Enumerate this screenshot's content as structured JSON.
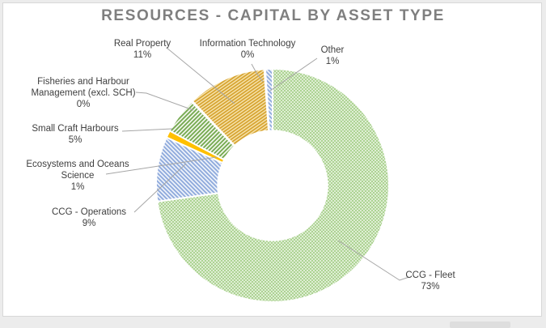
{
  "window": {
    "page_background": "#ECECEC",
    "card_background": "#FFFFFF",
    "card_border": "#D8D8D8"
  },
  "chart_data": {
    "type": "pie",
    "subtype": "donut",
    "title": "RESOURCES - CAPITAL BY ASSET TYPE",
    "title_color": "#7F7F7F",
    "legend_position": "none",
    "labels_style": "outside-callouts-with-leader-lines",
    "hole_ratio": 0.47,
    "start_angle_deg": 0,
    "direction": "clockwise",
    "leader_line_color": "#A6A6A6",
    "label_text_color": "#3F3F3F",
    "segments": [
      {
        "name": "CCG - Fleet",
        "pct": "73%",
        "value": 73,
        "fill": "green-light-hatch",
        "color": "#A9D18E"
      },
      {
        "name": "CCG - Operations",
        "pct": "9%",
        "value": 9,
        "fill": "blue-hatch",
        "color": "#8FAADC"
      },
      {
        "name": "Ecosystems and Oceans Science",
        "pct": "1%",
        "value": 1,
        "fill": "gold-solid",
        "color": "#FFC000"
      },
      {
        "name": "Small Craft Harbours",
        "pct": "5%",
        "value": 5,
        "fill": "green-dark-hatch",
        "color": "#70AD47"
      },
      {
        "name": "Fisheries and Harbour Management (excl. SCH)",
        "pct": "0%",
        "value": 0,
        "fill": "green-dark-hatch",
        "color": "#70AD47"
      },
      {
        "name": "Real Property",
        "pct": "11%",
        "value": 11,
        "fill": "gold-hatch",
        "color": "#BF9000"
      },
      {
        "name": "Information Technology",
        "pct": "0%",
        "value": 0,
        "fill": "green-light-solid",
        "color": "#A9D18E"
      },
      {
        "name": "Other",
        "pct": "1%",
        "value": 1,
        "fill": "blue-hatch",
        "color": "#8FAADC"
      }
    ]
  }
}
